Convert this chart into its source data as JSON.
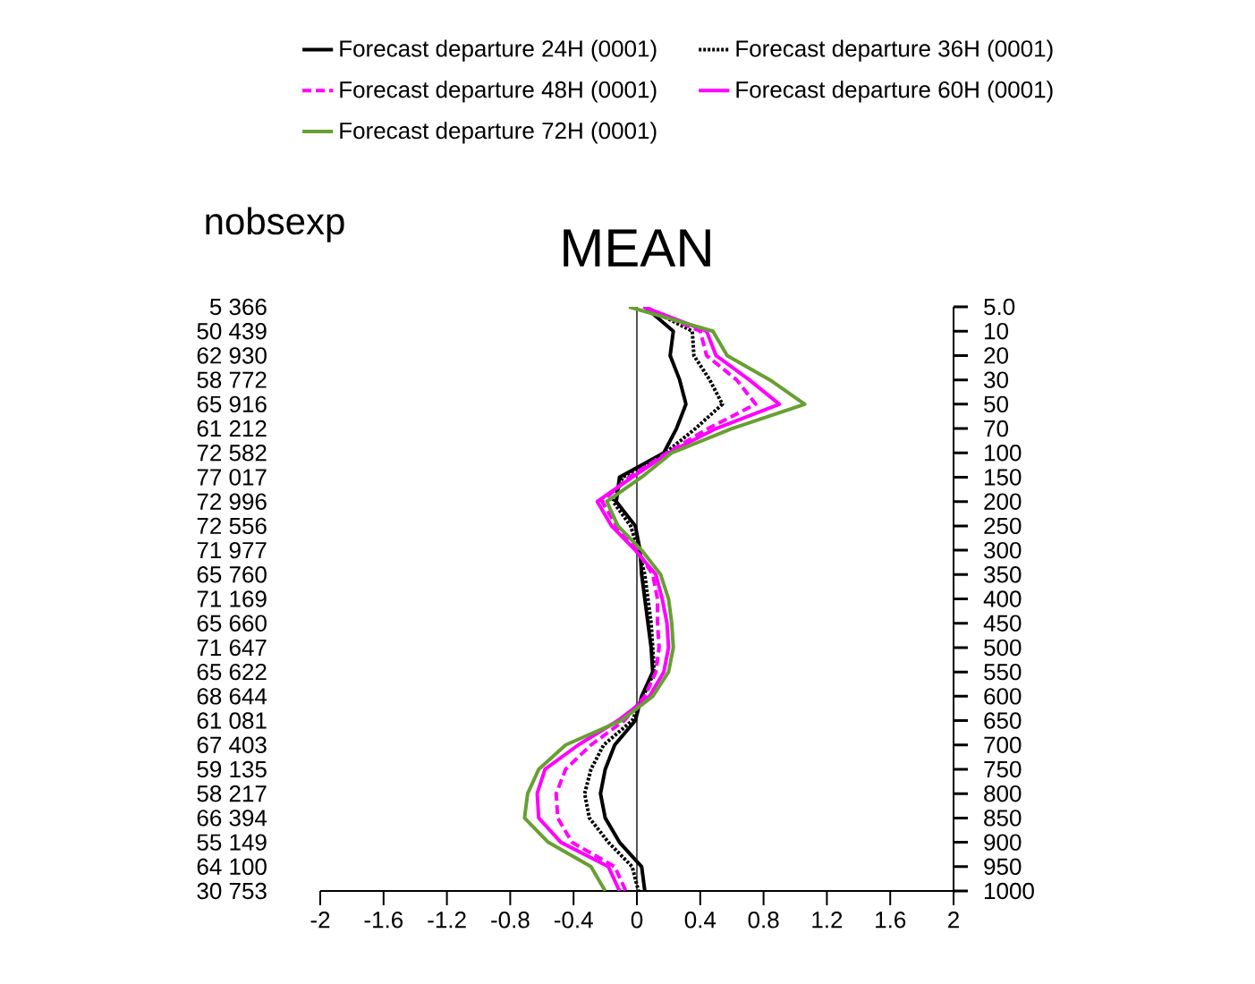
{
  "chart_data": {
    "type": "line",
    "orientation": "horizontal",
    "title": "MEAN",
    "ylabel": "nobsexp",
    "categories": [
      "5.0",
      "10",
      "20",
      "30",
      "50",
      "70",
      "100",
      "150",
      "200",
      "250",
      "300",
      "350",
      "400",
      "450",
      "500",
      "550",
      "600",
      "650",
      "700",
      "750",
      "800",
      "850",
      "900",
      "950",
      "1000"
    ],
    "y2_categories": [
      "5 366",
      "50 439",
      "62 930",
      "58 772",
      "65 916",
      "61 212",
      "72 582",
      "77 017",
      "72 996",
      "72 556",
      "71 977",
      "65 760",
      "71 169",
      "65 660",
      "71 647",
      "65 622",
      "68 644",
      "61 081",
      "67 403",
      "59 135",
      "58 217",
      "66 394",
      "55 149",
      "64 100",
      "30 753"
    ],
    "series": [
      {
        "name": "Forecast departure 24H (0001)",
        "color": "#000000",
        "line_style": "solid",
        "values": [
          0.05,
          0.23,
          0.21,
          0.27,
          0.31,
          0.25,
          0.17,
          -0.11,
          -0.13,
          -0.01,
          0.02,
          0.03,
          0.05,
          0.07,
          0.09,
          0.1,
          0.03,
          -0.01,
          -0.14,
          -0.2,
          -0.23,
          -0.2,
          -0.11,
          0.03,
          0.05
        ]
      },
      {
        "name": "Forecast departure 36H (0001)",
        "color": "#000000",
        "line_style": "dotted",
        "values": [
          0.05,
          0.35,
          0.36,
          0.46,
          0.54,
          0.37,
          0.18,
          -0.09,
          -0.15,
          -0.04,
          0.01,
          0.05,
          0.07,
          0.09,
          0.1,
          0.11,
          0.04,
          -0.03,
          -0.21,
          -0.29,
          -0.33,
          -0.3,
          -0.18,
          -0.03,
          0.01
        ]
      },
      {
        "name": "Forecast departure 48H (0001)",
        "color": "#ff00ff",
        "line_style": "dashed",
        "values": [
          0.05,
          0.4,
          0.44,
          0.63,
          0.75,
          0.45,
          0.19,
          -0.05,
          -0.22,
          -0.13,
          0.0,
          0.1,
          0.13,
          0.13,
          0.14,
          0.12,
          0.05,
          -0.08,
          -0.29,
          -0.45,
          -0.51,
          -0.5,
          -0.41,
          -0.14,
          -0.07
        ]
      },
      {
        "name": "Forecast departure 60H (0001)",
        "color": "#ff00ff",
        "line_style": "solid",
        "values": [
          0.04,
          0.44,
          0.5,
          0.71,
          0.9,
          0.5,
          0.2,
          -0.03,
          -0.25,
          -0.16,
          -0.01,
          0.12,
          0.16,
          0.19,
          0.2,
          0.17,
          0.08,
          -0.12,
          -0.37,
          -0.58,
          -0.63,
          -0.62,
          -0.48,
          -0.18,
          -0.11
        ]
      },
      {
        "name": "Forecast departure 72H (0001)",
        "color": "#66a032",
        "line_style": "solid",
        "values": [
          -0.05,
          0.48,
          0.57,
          0.84,
          1.06,
          0.6,
          0.22,
          0.03,
          -0.19,
          -0.12,
          0.03,
          0.15,
          0.2,
          0.22,
          0.23,
          0.2,
          0.1,
          -0.1,
          -0.45,
          -0.62,
          -0.69,
          -0.71,
          -0.56,
          -0.29,
          -0.2
        ]
      }
    ],
    "xlim": [
      -2,
      2
    ],
    "xticks": [
      -2,
      -1.6,
      -1.2,
      -0.8,
      -0.4,
      0,
      0.4,
      0.8,
      1.2,
      1.6,
      2
    ],
    "ref_lines": [
      {
        "axis": "x",
        "value": 0,
        "color": "#555555"
      }
    ],
    "legend": "top"
  }
}
